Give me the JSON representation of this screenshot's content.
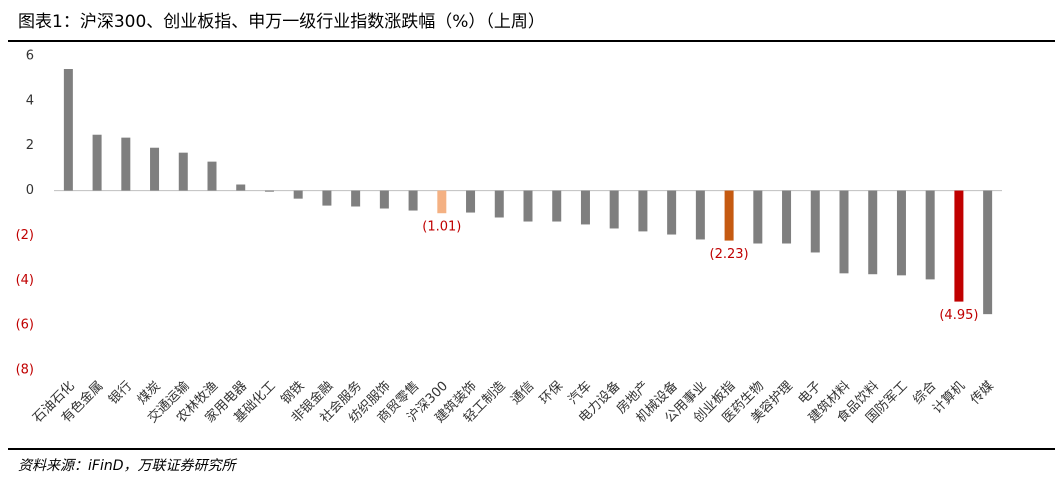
{
  "chart_data": {
    "type": "bar",
    "title": "图表1：沪深300、创业板指、申万一级行业指数涨跌幅（%）（上周）",
    "source": "资料来源：iFinD，万联证券研究所",
    "categories": [
      "石油石化",
      "有色金属",
      "银行",
      "煤炭",
      "交通运输",
      "农林牧渔",
      "家用电器",
      "基础化工",
      "钢铁",
      "非银金融",
      "社会服务",
      "纺织服饰",
      "商贸零售",
      "沪深300",
      "建筑装饰",
      "轻工制造",
      "通信",
      "环保",
      "汽车",
      "电力设备",
      "房地产",
      "机械设备",
      "公用事业",
      "创业板指",
      "医药生物",
      "美容护理",
      "电子",
      "建筑材料",
      "食品饮料",
      "国防军工",
      "综合",
      "计算机",
      "传媒"
    ],
    "values": [
      5.42,
      2.49,
      2.36,
      1.91,
      1.69,
      1.29,
      0.27,
      -0.05,
      -0.36,
      -0.67,
      -0.71,
      -0.8,
      -0.89,
      -1.01,
      -0.98,
      -1.2,
      -1.38,
      -1.38,
      -1.51,
      -1.69,
      -1.82,
      -1.96,
      -2.18,
      -2.23,
      -2.36,
      -2.36,
      -2.76,
      -3.69,
      -3.73,
      -3.78,
      -3.96,
      -4.95,
      -5.51
    ],
    "value_labels": [
      null,
      null,
      null,
      null,
      null,
      null,
      null,
      null,
      null,
      null,
      null,
      null,
      null,
      "(1.01)",
      null,
      null,
      null,
      null,
      null,
      null,
      null,
      null,
      null,
      "(2.23)",
      null,
      null,
      null,
      null,
      null,
      null,
      null,
      "(4.95)",
      null
    ],
    "color": "#7f7f7f",
    "highlight_colors": {
      "13": "#f4b183",
      "23": "#c55a11",
      "31": "#c00000"
    },
    "ylim": [
      -8,
      6
    ],
    "yticks": [
      {
        "value": -8,
        "label": "(8)"
      },
      {
        "value": -6,
        "label": "(6)"
      },
      {
        "value": -4,
        "label": "(4)"
      },
      {
        "value": -2,
        "label": "(2)"
      },
      0,
      2,
      4,
      6
    ],
    "negative_label_color": "#c00000"
  }
}
